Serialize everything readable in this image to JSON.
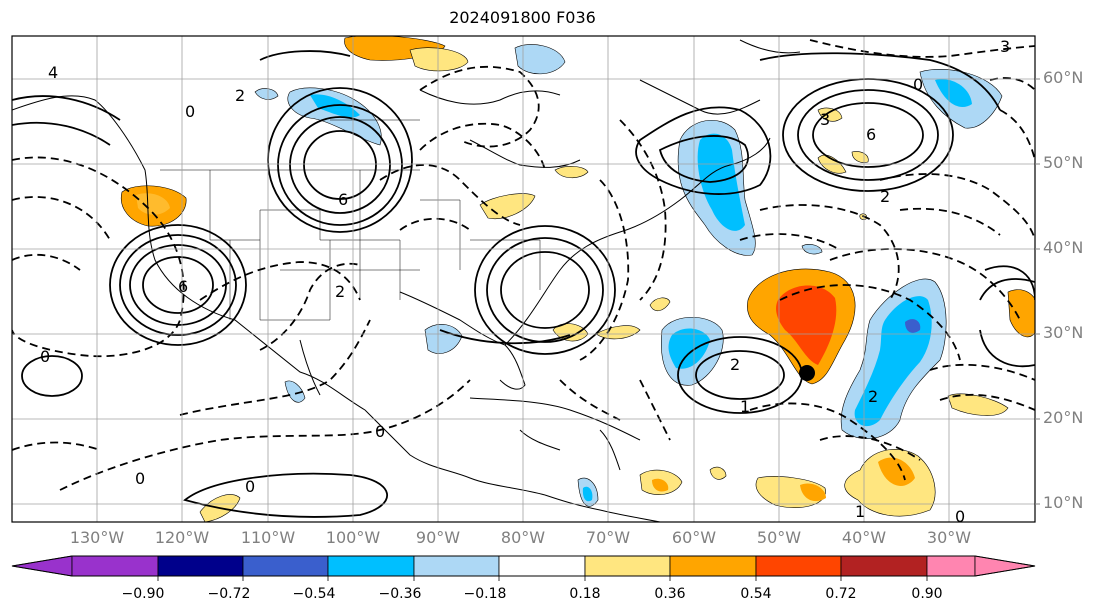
{
  "title": "2024091800 F036",
  "lat_labels": [
    "60°N",
    "50°N",
    "40°N",
    "30°N",
    "20°N",
    "10°N"
  ],
  "lon_labels": [
    "130°W",
    "120°W",
    "110°W",
    "100°W",
    "90°W",
    "80°W",
    "70°W",
    "60°W",
    "50°W",
    "40°W",
    "30°W"
  ],
  "colorbar": {
    "ticks": [
      "−0.90",
      "−0.72",
      "−0.54",
      "−0.36",
      "−0.18",
      "0.18",
      "0.36",
      "0.54",
      "0.72",
      "0.90"
    ],
    "colors": [
      "#9932cc",
      "#00008b",
      "#3a5fcd",
      "#00bfff",
      "#add8f5",
      "#ffffff",
      "#ffe680",
      "#ffa500",
      "#ff4500",
      "#b22222",
      "#ff85b0"
    ]
  },
  "contour_labels": [
    "6",
    "6",
    "6",
    "4",
    "2",
    "2",
    "2",
    "2",
    "1",
    "0",
    "0",
    "0",
    "0",
    "0",
    "0",
    "0",
    "3",
    "3",
    "1",
    "2"
  ],
  "storm_marker": "black-dot"
}
